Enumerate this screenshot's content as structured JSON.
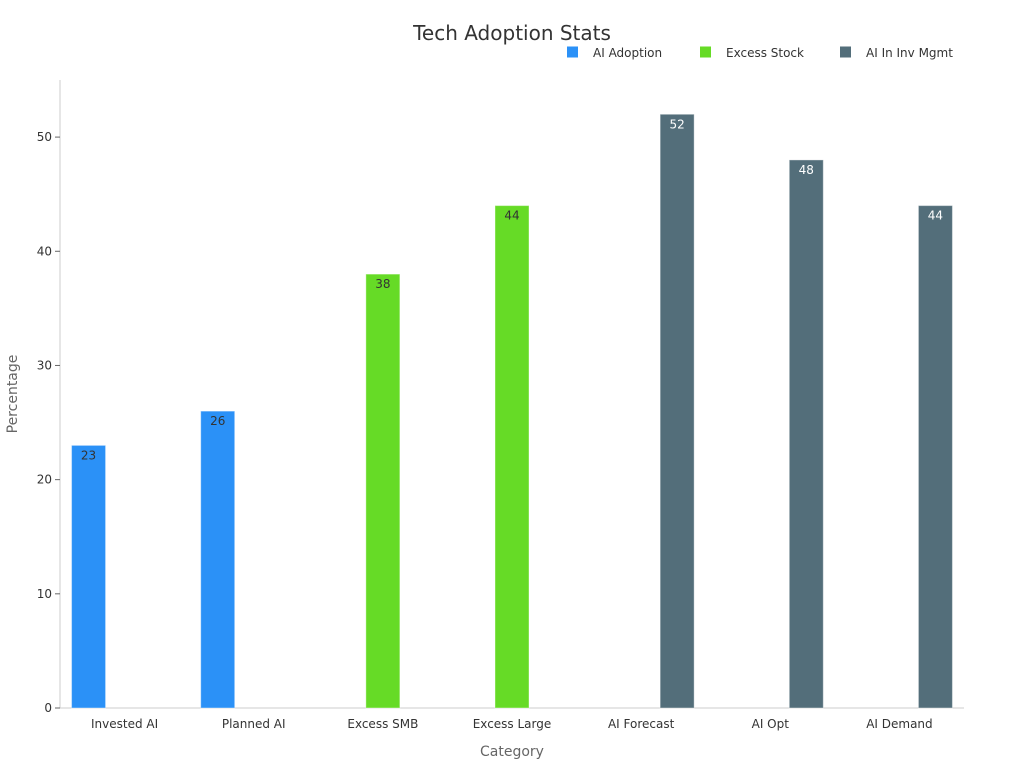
{
  "chart_data": {
    "type": "bar",
    "title": "Tech Adoption Stats",
    "xlabel": "Category",
    "ylabel": "Percentage",
    "ylim": [
      0,
      55
    ],
    "yticks": [
      0,
      10,
      20,
      30,
      40,
      50
    ],
    "categories": [
      "Invested AI",
      "Planned AI",
      "Excess SMB",
      "Excess Large",
      "AI Forecast",
      "AI Opt",
      "AI Demand"
    ],
    "legend_position": "top-right",
    "grid": false,
    "series": [
      {
        "name": "AI Adoption",
        "color": "#2b91f7",
        "label_color": "#333333",
        "values": [
          23,
          26,
          null,
          null,
          null,
          null,
          null
        ]
      },
      {
        "name": "Excess Stock",
        "color": "#66db26",
        "label_color": "#333333",
        "values": [
          null,
          null,
          38,
          44,
          null,
          null,
          null
        ]
      },
      {
        "name": "AI In Inv Mgmt",
        "color": "#536e7a",
        "label_color": "#ffffff",
        "values": [
          null,
          null,
          null,
          null,
          52,
          48,
          44
        ]
      }
    ]
  }
}
